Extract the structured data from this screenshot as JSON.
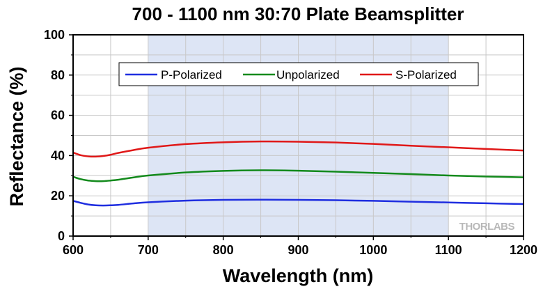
{
  "chart_data": {
    "type": "line",
    "title": "700 - 1100 nm 30:70 Plate Beamsplitter",
    "xlabel": "Wavelength (nm)",
    "ylabel": "Reflectance (%)",
    "xlim": [
      600,
      1200
    ],
    "ylim": [
      0,
      100
    ],
    "x_ticks": [
      600,
      700,
      800,
      900,
      1000,
      1100,
      1200
    ],
    "y_ticks": [
      0,
      20,
      40,
      60,
      80,
      100
    ],
    "grid": true,
    "legend_position": "top-center",
    "highlight_range": [
      700,
      1100
    ],
    "highlight_color": "#dde5f5",
    "watermark": "THORLABS",
    "series": [
      {
        "name": "P-Polarized",
        "color": "#1f2ee0",
        "x": [
          600,
          610,
          620,
          630,
          640,
          650,
          660,
          680,
          700,
          750,
          800,
          850,
          900,
          950,
          1000,
          1050,
          1100,
          1150,
          1200
        ],
        "y": [
          17.5,
          16.5,
          15.7,
          15.3,
          15.2,
          15.3,
          15.5,
          16.2,
          16.8,
          17.6,
          18.0,
          18.1,
          18.0,
          17.8,
          17.5,
          17.1,
          16.7,
          16.3,
          15.9
        ]
      },
      {
        "name": "Unpolarized",
        "color": "#138a1c",
        "x": [
          600,
          610,
          620,
          630,
          640,
          650,
          660,
          680,
          700,
          750,
          800,
          850,
          900,
          950,
          1000,
          1050,
          1100,
          1150,
          1200
        ],
        "y": [
          29.5,
          28.3,
          27.6,
          27.3,
          27.3,
          27.6,
          28.0,
          29.1,
          30.1,
          31.6,
          32.4,
          32.7,
          32.5,
          32.0,
          31.4,
          30.8,
          30.1,
          29.6,
          29.2
        ]
      },
      {
        "name": "S-Polarized",
        "color": "#e01818",
        "x": [
          600,
          610,
          620,
          630,
          640,
          650,
          660,
          680,
          700,
          750,
          800,
          850,
          900,
          950,
          1000,
          1050,
          1100,
          1150,
          1200
        ],
        "y": [
          41.5,
          40.2,
          39.6,
          39.5,
          39.8,
          40.4,
          41.3,
          42.7,
          43.9,
          45.7,
          46.6,
          47.0,
          46.9,
          46.5,
          45.8,
          44.9,
          44.1,
          43.3,
          42.5
        ]
      }
    ]
  }
}
